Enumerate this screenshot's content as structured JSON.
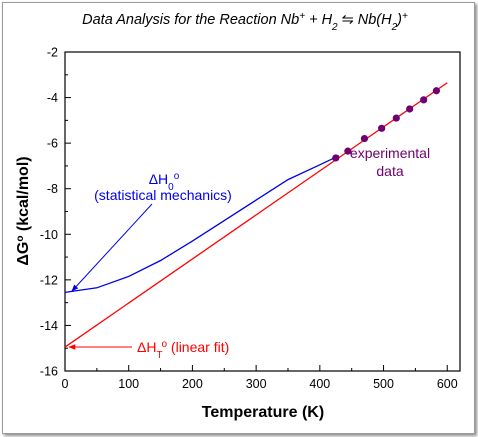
{
  "chart_data": {
    "type": "line",
    "title": {
      "main": "Data Analysis for the Reaction Nb",
      "plus": "+",
      "mid": " + H",
      "h2sub": "2",
      "arrows": "⇋",
      "prod": "Nb(H",
      "prodsub": "2",
      "close": ")",
      "prodsup": "+"
    },
    "xlabel": "Temperature (K)",
    "ylabel": {
      "delta": "Δ",
      "g": "G",
      "sup": "o",
      "rest": " (kcal/mol)"
    },
    "xlim": [
      0,
      620
    ],
    "ylim": [
      -16,
      -2
    ],
    "xticks": [
      0,
      100,
      200,
      300,
      400,
      500,
      600
    ],
    "yticks": [
      -2,
      -4,
      -6,
      -8,
      -10,
      -12,
      -14,
      -16
    ],
    "xtick_labels": [
      "0",
      "100",
      "200",
      "300",
      "400",
      "500",
      "600"
    ],
    "ytick_labels": [
      "-2",
      "-4",
      "-6",
      "-8",
      "-10",
      "-12",
      "-14",
      "-16"
    ],
    "series": [
      {
        "color": "#6f006f",
        "x": [
          425,
          444,
          470,
          497,
          520,
          541,
          563,
          583
        ],
        "y": [
          -6.65,
          -6.35,
          -5.8,
          -5.35,
          -4.9,
          -4.5,
          -4.1,
          -3.7
        ]
      },
      {
        "color": "#ff0000",
        "x": [
          0,
          600
        ],
        "y": [
          -14.95,
          -3.35
        ]
      },
      {
        "color": "#0000e6",
        "x": [
          0,
          50,
          100,
          150,
          200,
          250,
          300,
          350,
          400,
          430
        ],
        "y": [
          -12.55,
          -12.35,
          -11.85,
          -11.15,
          -10.3,
          -9.4,
          -8.5,
          -7.6,
          -6.95,
          -6.55
        ]
      }
    ],
    "annotations": {
      "experimental": {
        "line1": "experimental",
        "line2": "data",
        "color": "#6f006f"
      },
      "statistical": {
        "symbol": "ΔH",
        "sub": "0",
        "sup": "o",
        "label": "(statistical mechanics)",
        "color": "#0000e6"
      },
      "linear": {
        "symbol": "ΔH",
        "sub": "T",
        "sup": "o",
        "label": " (linear fit)",
        "color": "#ff0000"
      }
    },
    "grid": false,
    "legend": "none"
  }
}
